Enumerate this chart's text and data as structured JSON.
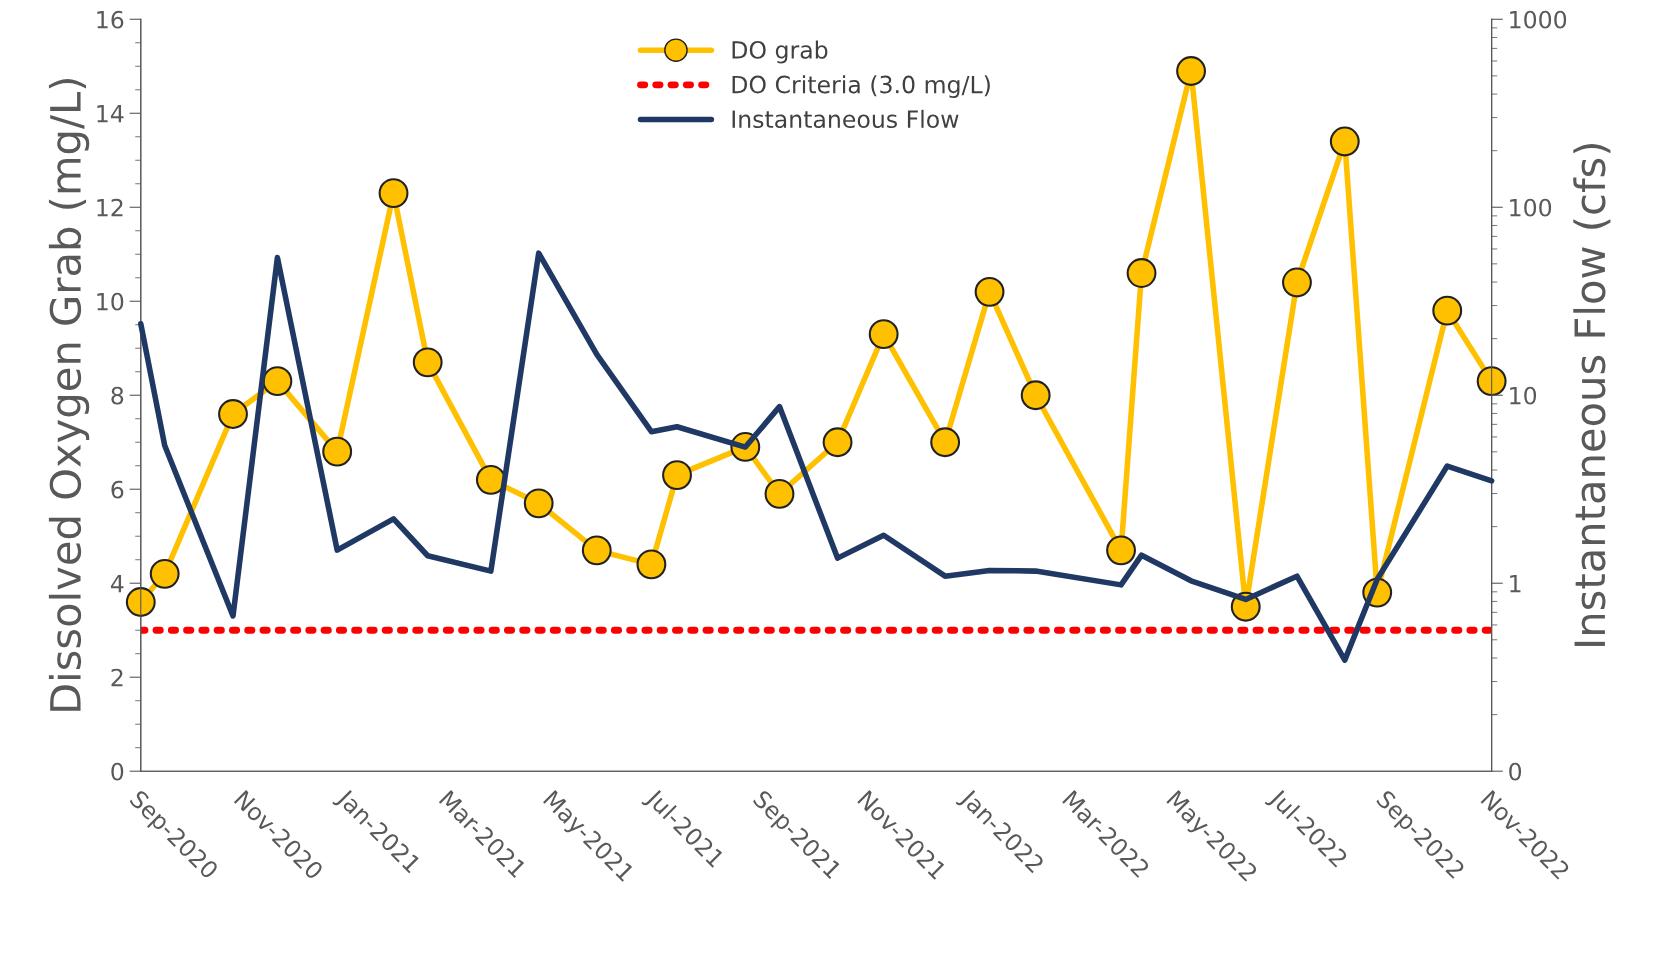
{
  "chart_data": {
    "type": "line",
    "x": [
      "2020-09-01",
      "2020-09-15",
      "2020-10-25",
      "2020-11-20",
      "2020-12-25",
      "2021-01-27",
      "2021-02-16",
      "2021-03-25",
      "2021-04-22",
      "2021-05-26",
      "2021-06-27",
      "2021-07-12",
      "2021-08-21",
      "2021-09-10",
      "2021-10-14",
      "2021-11-10",
      "2021-12-16",
      "2022-01-11",
      "2022-02-07",
      "2022-03-29",
      "2022-04-10",
      "2022-05-09",
      "2022-06-10",
      "2022-07-10",
      "2022-08-07",
      "2022-08-26",
      "2022-10-06",
      "2022-11-01"
    ],
    "series": [
      {
        "name": "DO grab",
        "color": "#ffc000",
        "marker": "circle",
        "values": [
          3.6,
          4.2,
          7.6,
          8.3,
          6.8,
          12.3,
          8.7,
          6.2,
          5.7,
          4.7,
          4.4,
          6.3,
          6.9,
          5.9,
          7.0,
          9.3,
          7.0,
          10.2,
          8.0,
          4.7,
          10.6,
          14.9,
          3.5,
          10.4,
          13.4,
          3.8,
          9.8,
          8.3
        ]
      },
      {
        "name": "Instantaneous Flow",
        "color": "#1f3864",
        "axis": "y2",
        "marker": "none",
        "values": [
          24,
          5.4,
          0.67,
          54,
          1.5,
          2.2,
          1.4,
          1.16,
          57,
          16.5,
          6.4,
          6.8,
          5.3,
          8.7,
          1.36,
          1.8,
          1.09,
          1.17,
          1.16,
          0.98,
          1.41,
          1.03,
          0.82,
          1.09,
          0.39,
          1.05,
          4.2,
          3.5
        ]
      }
    ],
    "ylabel": "Dissolved Oxygen Grab (mg/L)",
    "y2label": "Instantaneous Flow (cfs)",
    "ylim": [
      0,
      16
    ],
    "yticks": [
      0,
      2,
      4,
      6,
      8,
      10,
      12,
      14,
      16
    ],
    "y2lim": [
      0.1,
      1000
    ],
    "y2ticks": [
      {
        "value": 0.1,
        "label": "0"
      },
      1,
      10,
      100,
      1000
    ],
    "log": "y2",
    "xlim": [
      "2020-09-01",
      "2022-11-01"
    ],
    "xticks": [
      {
        "value": "2020-09-01",
        "label": "Sep-2020"
      },
      {
        "value": "2020-11-01",
        "label": "Nov-2020"
      },
      {
        "value": "2021-01-01",
        "label": "Jan-2021"
      },
      {
        "value": "2021-03-01",
        "label": "Mar-2021"
      },
      {
        "value": "2021-05-01",
        "label": "May-2021"
      },
      {
        "value": "2021-07-01",
        "label": "Jul-2021"
      },
      {
        "value": "2021-09-01",
        "label": "Sep-2021"
      },
      {
        "value": "2021-11-01",
        "label": "Nov-2021"
      },
      {
        "value": "2022-01-01",
        "label": "Jan-2022"
      },
      {
        "value": "2022-03-01",
        "label": "Mar-2022"
      },
      {
        "value": "2022-05-01",
        "label": "May-2022"
      },
      {
        "value": "2022-07-01",
        "label": "Jul-2022"
      },
      {
        "value": "2022-09-01",
        "label": "Sep-2022"
      },
      {
        "value": "2022-11-01",
        "label": "Nov-2022"
      }
    ],
    "ref_lines": [
      {
        "axis": "y",
        "value": 3.0,
        "label": "DO Criteria (3.0 mg/L)",
        "color": "#ff0000",
        "line_style": "dotted"
      }
    ],
    "legend": "top",
    "grid": false,
    "line_style": "solid"
  }
}
